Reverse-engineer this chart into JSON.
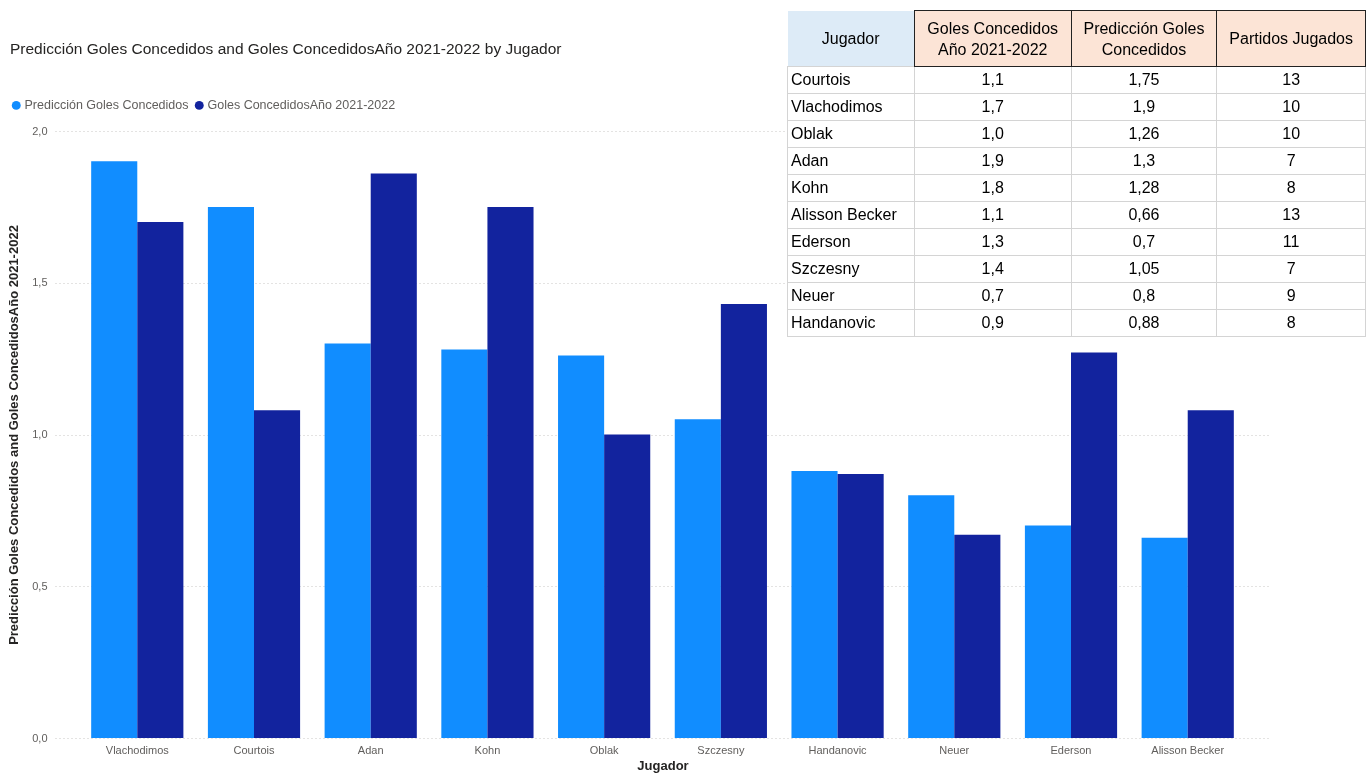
{
  "chart_data": [
    {
      "type": "bar",
      "title": "Predicción Goles Concedidos and Goles ConcedidosAño 2021-2022 by Jugador",
      "xlabel": "Jugador",
      "ylabel": "Predicción Goles Concedidos and Goles ConcedidosAño 2021-2022",
      "categories": [
        "Vlachodimos",
        "Courtois",
        "Adan",
        "Kohn",
        "Oblak",
        "Szczesny",
        "Handanovic",
        "Neuer",
        "Ederson",
        "Alisson Becker"
      ],
      "series": [
        {
          "name": "Predicción Goles Concedidos",
          "color": "#118dff",
          "values": [
            1.9,
            1.75,
            1.3,
            1.28,
            1.26,
            1.05,
            0.88,
            0.8,
            0.7,
            0.66
          ]
        },
        {
          "name": "Goles ConcedidosAño 2021-2022",
          "color": "#12239e",
          "values": [
            1.7,
            1.08,
            1.86,
            1.75,
            1.0,
            1.43,
            0.87,
            0.67,
            1.27,
            1.08
          ]
        }
      ],
      "ylim": [
        0,
        2
      ],
      "yticks": [
        {
          "value": 0,
          "label": "0,0"
        },
        {
          "value": 0.5,
          "label": "0,5"
        },
        {
          "value": 1,
          "label": "1,0"
        },
        {
          "value": 1.5,
          "label": "1,5"
        },
        {
          "value": 2,
          "label": "2,0"
        }
      ],
      "grid": "y",
      "legend": "top left"
    },
    {
      "type": "other",
      "categories": [
        "Jugador",
        "Goles Concedidos Año 2021-2022",
        "Predicción Goles Concedidos",
        "Partidos Jugados"
      ],
      "colors": [
        "#ddebf7",
        "#fce4d6",
        "#fce4d6",
        "#fce4d6"
      ],
      "annotations": [
        "Courtois",
        "1,1",
        "1,75",
        "13",
        "Vlachodimos",
        "1,7",
        "1,9",
        "10",
        "Oblak",
        "1,0",
        "1,26",
        "10",
        "Adan",
        "1,9",
        "1,3",
        "7",
        "Kohn",
        "1,8",
        "1,28",
        "8",
        "Alisson Becker",
        "1,1",
        "0,66",
        "13",
        "Ederson",
        "1,3",
        "0,7",
        "11",
        "Szczesny",
        "1,4",
        "1,05",
        "7",
        "Neuer",
        "0,7",
        "0,8",
        "9",
        "Handanovic",
        "0,9",
        "0,88",
        "8"
      ]
    }
  ]
}
